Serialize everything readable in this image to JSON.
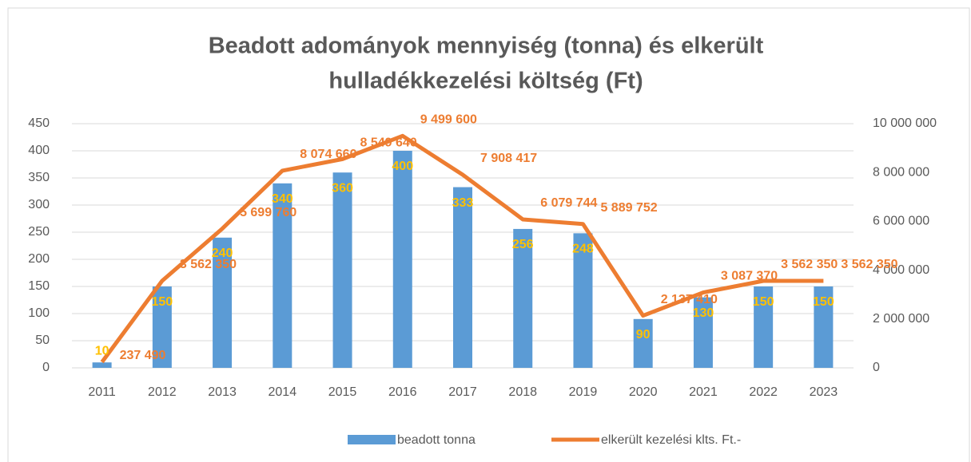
{
  "chart_data": {
    "type": "bar-line",
    "title": [
      "Beadott adományok mennyiség (tonna) és elkerült",
      "hulladékkezelési költség (Ft)"
    ],
    "categories": [
      "2011",
      "2012",
      "2013",
      "2014",
      "2015",
      "2016",
      "2017",
      "2018",
      "2019",
      "2020",
      "2021",
      "2022",
      "2023"
    ],
    "series": [
      {
        "name": "beadott tonna",
        "type": "bar",
        "color": "#5b9bd5",
        "label_color": "#ffc000",
        "values": [
          10,
          150,
          240,
          340,
          360,
          400,
          333,
          256,
          248,
          90,
          130,
          150,
          150
        ]
      },
      {
        "name": "elkerült kezelési klts. Ft.-",
        "type": "line",
        "axis": "y2",
        "color": "#ed7d31",
        "label_color": "#ed7d31",
        "values": [
          237490,
          3562350,
          5699760,
          8074660,
          8549640,
          9499600,
          7908417,
          6079744,
          5889752,
          2137410,
          3087370,
          3562350,
          3562350
        ],
        "value_labels": [
          "237 490",
          "3 562 350",
          "5 699 760",
          "8 074 660",
          "8 549 640",
          "9 499 600",
          "7 908 417",
          "6 079 744",
          "5 889 752",
          "2 137 410",
          "3 087 370",
          "3 562 350",
          "3 562 350"
        ]
      }
    ],
    "ylim": [
      0,
      450
    ],
    "yticks": [
      0,
      50,
      100,
      150,
      200,
      250,
      300,
      350,
      400,
      450
    ],
    "y2lim": [
      0,
      10000000
    ],
    "y2ticks": [
      0,
      {
        "value": 2000000,
        "label": "2 000 000"
      },
      {
        "value": 4000000,
        "label": "4 000 000"
      },
      {
        "value": 6000000,
        "label": "6 000 000"
      },
      {
        "value": 8000000,
        "label": "8 000 000"
      },
      {
        "value": 10000000,
        "label": "10 000 000"
      }
    ],
    "grid": true,
    "legend": "bottom"
  }
}
